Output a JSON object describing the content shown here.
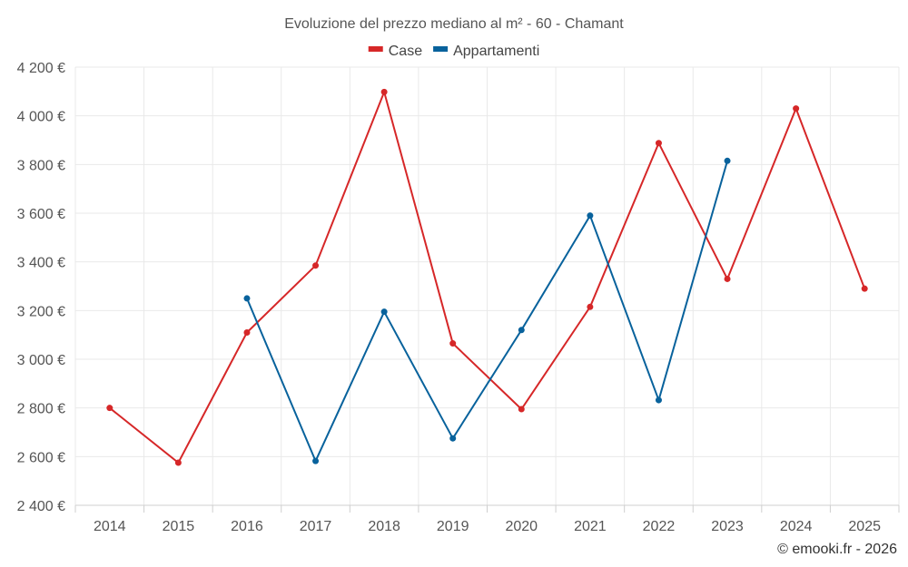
{
  "chart_data": {
    "type": "line",
    "title": "Evoluzione del prezzo mediano al m² - 60 - Chamant",
    "categories": [
      "2014",
      "2015",
      "2016",
      "2017",
      "2018",
      "2019",
      "2020",
      "2021",
      "2022",
      "2023",
      "2024",
      "2025"
    ],
    "series": [
      {
        "name": "Case",
        "color": "#d62728",
        "values": [
          2800,
          2575,
          3110,
          3385,
          4098,
          3065,
          2795,
          3215,
          3888,
          3330,
          4030,
          3290
        ]
      },
      {
        "name": "Appartamenti",
        "color": "#08629c",
        "values": [
          null,
          null,
          3250,
          2582,
          3195,
          2675,
          3120,
          3590,
          2832,
          3815,
          null,
          null
        ]
      }
    ],
    "y_ticks": [
      "2 400 €",
      "2 600 €",
      "2 800 €",
      "3 000 €",
      "3 200 €",
      "3 400 €",
      "3 600 €",
      "3 800 €",
      "4 000 €",
      "4 200 €"
    ],
    "ylim": [
      2400,
      4200
    ],
    "ylabel": "",
    "xlabel": "",
    "grid": true,
    "legend_position": "top-center"
  },
  "credit": "© emooki.fr - 2026"
}
